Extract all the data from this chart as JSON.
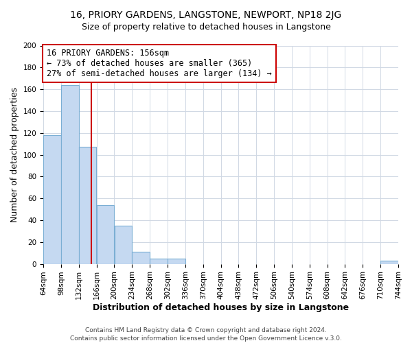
{
  "title": "16, PRIORY GARDENS, LANGSTONE, NEWPORT, NP18 2JG",
  "subtitle": "Size of property relative to detached houses in Langstone",
  "xlabel": "Distribution of detached houses by size in Langstone",
  "ylabel": "Number of detached properties",
  "bin_edges": [
    64,
    98,
    132,
    166,
    200,
    234,
    268,
    302,
    336,
    370,
    404,
    438,
    472,
    506,
    540,
    574,
    608,
    642,
    676,
    710,
    744
  ],
  "bin_counts": [
    118,
    164,
    107,
    54,
    35,
    11,
    5,
    5,
    0,
    0,
    0,
    0,
    0,
    0,
    0,
    0,
    0,
    0,
    0,
    3
  ],
  "bar_color": "#c5d9f1",
  "bar_edge_color": "#7bafd4",
  "vertical_line_x": 156,
  "vertical_line_color": "#cc0000",
  "annotation_line1": "16 PRIORY GARDENS: 156sqm",
  "annotation_line2": "← 73% of detached houses are smaller (365)",
  "annotation_line3": "27% of semi-detached houses are larger (134) →",
  "annotation_box_color": "#ffffff",
  "annotation_box_edge_color": "#cc0000",
  "ylim": [
    0,
    200
  ],
  "yticks": [
    0,
    20,
    40,
    60,
    80,
    100,
    120,
    140,
    160,
    180,
    200
  ],
  "footer_line1": "Contains HM Land Registry data © Crown copyright and database right 2024.",
  "footer_line2": "Contains public sector information licensed under the Open Government Licence v.3.0.",
  "title_fontsize": 10,
  "subtitle_fontsize": 9,
  "axis_label_fontsize": 9,
  "tick_fontsize": 7.5,
  "annotation_fontsize": 8.5,
  "footer_fontsize": 6.5,
  "background_color": "#ffffff",
  "grid_color": "#d0d8e4"
}
